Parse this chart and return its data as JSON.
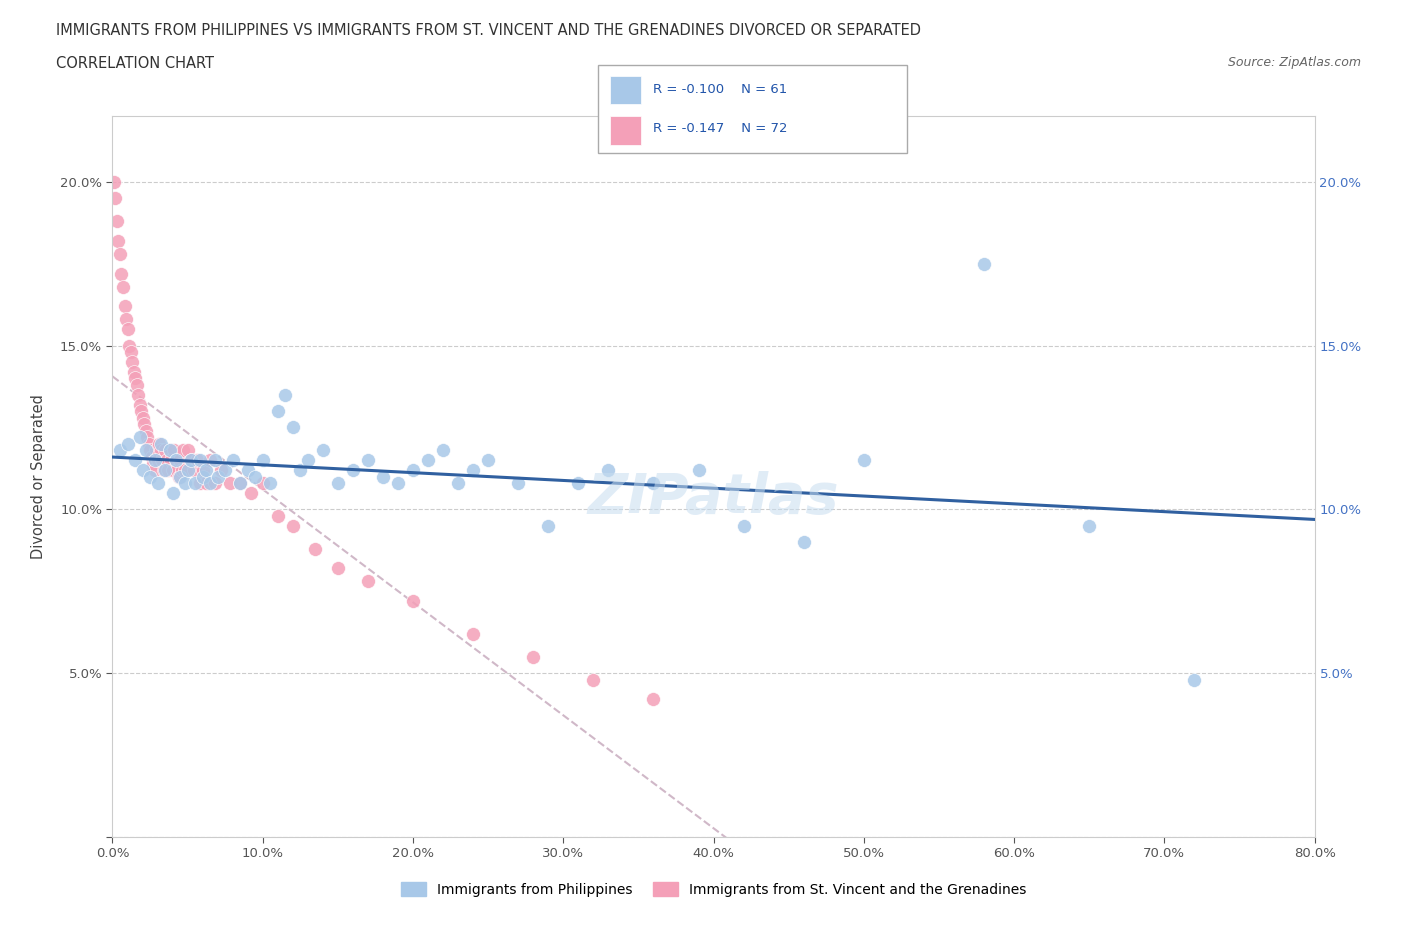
{
  "title_line1": "IMMIGRANTS FROM PHILIPPINES VS IMMIGRANTS FROM ST. VINCENT AND THE GRENADINES DIVORCED OR SEPARATED",
  "title_line2": "CORRELATION CHART",
  "source_text": "Source: ZipAtlas.com",
  "ylabel": "Divorced or Separated",
  "xlim": [
    0.0,
    0.8
  ],
  "ylim": [
    0.0,
    0.22
  ],
  "color_blue": "#a8c8e8",
  "color_pink": "#f4a0b8",
  "trendline_blue": "#3060a0",
  "trendline_pink": "#d8c0d0",
  "watermark": "ZIPatlas",
  "blue_scatter_x": [
    0.005,
    0.01,
    0.015,
    0.018,
    0.02,
    0.022,
    0.025,
    0.028,
    0.03,
    0.032,
    0.035,
    0.038,
    0.04,
    0.042,
    0.045,
    0.048,
    0.05,
    0.052,
    0.055,
    0.058,
    0.06,
    0.062,
    0.065,
    0.068,
    0.07,
    0.075,
    0.08,
    0.085,
    0.09,
    0.095,
    0.1,
    0.105,
    0.11,
    0.115,
    0.12,
    0.125,
    0.13,
    0.14,
    0.15,
    0.16,
    0.17,
    0.18,
    0.19,
    0.2,
    0.21,
    0.22,
    0.23,
    0.24,
    0.25,
    0.27,
    0.29,
    0.31,
    0.33,
    0.36,
    0.39,
    0.42,
    0.46,
    0.5,
    0.58,
    0.65,
    0.72
  ],
  "blue_scatter_y": [
    0.118,
    0.12,
    0.115,
    0.122,
    0.112,
    0.118,
    0.11,
    0.115,
    0.108,
    0.12,
    0.112,
    0.118,
    0.105,
    0.115,
    0.11,
    0.108,
    0.112,
    0.115,
    0.108,
    0.115,
    0.11,
    0.112,
    0.108,
    0.115,
    0.11,
    0.112,
    0.115,
    0.108,
    0.112,
    0.11,
    0.115,
    0.108,
    0.13,
    0.135,
    0.125,
    0.112,
    0.115,
    0.118,
    0.108,
    0.112,
    0.115,
    0.11,
    0.108,
    0.112,
    0.115,
    0.118,
    0.108,
    0.112,
    0.115,
    0.108,
    0.095,
    0.108,
    0.112,
    0.108,
    0.112,
    0.095,
    0.09,
    0.115,
    0.175,
    0.095,
    0.048
  ],
  "pink_scatter_x": [
    0.001,
    0.002,
    0.003,
    0.004,
    0.005,
    0.006,
    0.007,
    0.008,
    0.009,
    0.01,
    0.011,
    0.012,
    0.013,
    0.014,
    0.015,
    0.016,
    0.017,
    0.018,
    0.019,
    0.02,
    0.021,
    0.022,
    0.023,
    0.024,
    0.025,
    0.026,
    0.027,
    0.028,
    0.029,
    0.03,
    0.031,
    0.032,
    0.033,
    0.034,
    0.035,
    0.036,
    0.037,
    0.038,
    0.039,
    0.04,
    0.041,
    0.042,
    0.043,
    0.044,
    0.045,
    0.046,
    0.047,
    0.048,
    0.05,
    0.052,
    0.054,
    0.056,
    0.058,
    0.06,
    0.062,
    0.065,
    0.068,
    0.072,
    0.078,
    0.085,
    0.092,
    0.1,
    0.11,
    0.12,
    0.135,
    0.15,
    0.17,
    0.2,
    0.24,
    0.28,
    0.32,
    0.36
  ],
  "pink_scatter_y": [
    0.2,
    0.195,
    0.188,
    0.182,
    0.178,
    0.172,
    0.168,
    0.162,
    0.158,
    0.155,
    0.15,
    0.148,
    0.145,
    0.142,
    0.14,
    0.138,
    0.135,
    0.132,
    0.13,
    0.128,
    0.126,
    0.124,
    0.122,
    0.12,
    0.118,
    0.116,
    0.114,
    0.112,
    0.118,
    0.115,
    0.12,
    0.118,
    0.115,
    0.112,
    0.118,
    0.115,
    0.112,
    0.118,
    0.115,
    0.112,
    0.118,
    0.115,
    0.112,
    0.11,
    0.115,
    0.112,
    0.118,
    0.112,
    0.118,
    0.115,
    0.112,
    0.115,
    0.108,
    0.112,
    0.108,
    0.115,
    0.108,
    0.112,
    0.108,
    0.108,
    0.105,
    0.108,
    0.098,
    0.095,
    0.088,
    0.082,
    0.078,
    0.072,
    0.062,
    0.055,
    0.048,
    0.042
  ]
}
